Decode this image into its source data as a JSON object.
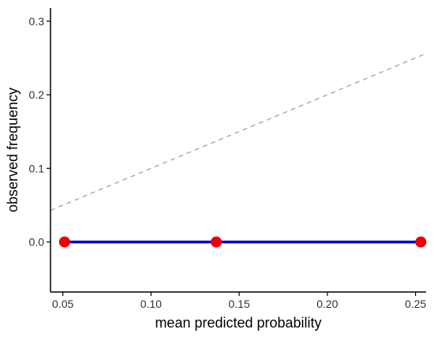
{
  "chart_data": {
    "type": "line",
    "title": "",
    "xlabel": "mean predicted probability",
    "ylabel": "observed frequency",
    "xlim": [
      0.043,
      0.256
    ],
    "ylim": [
      -0.068,
      0.318
    ],
    "x_ticks": [
      0.05,
      0.1,
      0.15,
      0.2,
      0.25
    ],
    "x_tick_labels": [
      "0.05",
      "0.10",
      "0.15",
      "0.20",
      "0.25"
    ],
    "y_ticks": [
      0.0,
      0.1,
      0.2,
      0.3
    ],
    "y_tick_labels": [
      "0.0",
      "0.1",
      "0.2",
      "0.3"
    ],
    "grid": false,
    "legend": "none",
    "series": [
      {
        "x": [
          0.051,
          0.137,
          0.253
        ],
        "y": [
          0.0,
          0.0,
          0.0
        ],
        "line_color": "#0000cc",
        "point_color": "#ee0000"
      }
    ],
    "reference_line": {
      "style": "dashed",
      "color": "#aaaaaa",
      "x": [
        0.043,
        0.256
      ],
      "y": [
        0.043,
        0.256
      ]
    }
  }
}
